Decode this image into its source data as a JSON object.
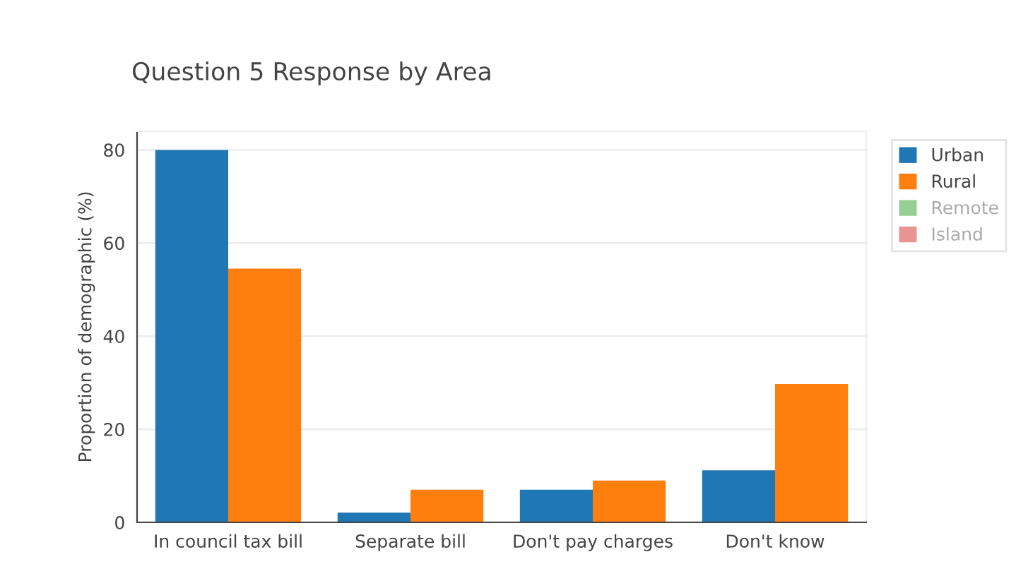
{
  "chart_data": {
    "type": "bar",
    "title": "Question 5 Response by Area",
    "ylabel": "Proportion of demographic (%)",
    "categories": [
      "In council tax bill",
      "Separate bill",
      "Don't pay charges",
      "Don't know"
    ],
    "series": [
      {
        "name": "Urban",
        "color": "#1f77b4",
        "values": [
          80,
          2.1,
          7,
          11.2
        ]
      },
      {
        "name": "Rural",
        "color": "#ff7f0e",
        "values": [
          54.5,
          7,
          9,
          29.7
        ]
      },
      {
        "name": "Remote",
        "color": "#2ca02c",
        "values": [
          null,
          null,
          null,
          null
        ]
      },
      {
        "name": "Island",
        "color": "#d62728",
        "values": [
          null,
          null,
          null,
          null
        ]
      }
    ],
    "ylim": [
      0,
      84
    ],
    "yticks": [
      0,
      20,
      40,
      60,
      80
    ],
    "grid": "y",
    "legend": "top right"
  }
}
